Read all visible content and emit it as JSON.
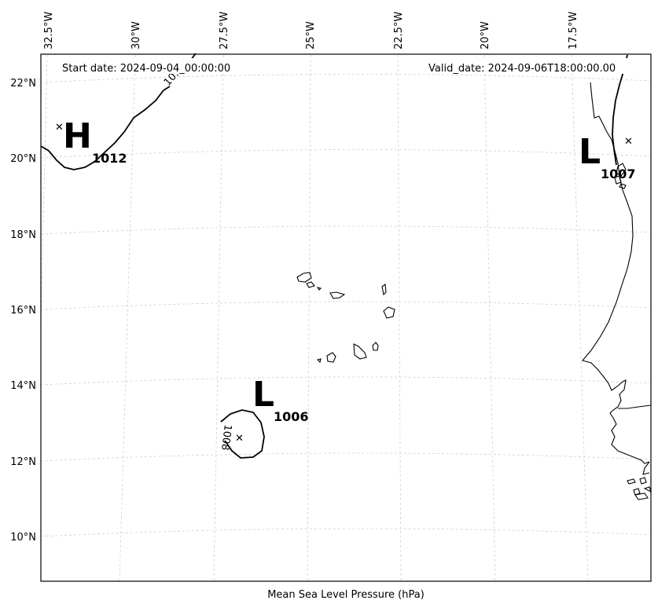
{
  "header": {
    "start_date": "Start date: 2024-09-04_00:00:00",
    "valid_date": "Valid_date: 2024-09-06T18:00:00.00"
  },
  "axis": {
    "xlabel": "Mean Sea Level Pressure (hPa)",
    "lon_ticks": [
      "32.5°W",
      "30°W",
      "27.5°W",
      "25°W",
      "22.5°W",
      "20°W",
      "17.5°W"
    ],
    "lat_ticks": [
      "22°N",
      "20°N",
      "18°N",
      "16°N",
      "14°N",
      "12°N",
      "10°N"
    ]
  },
  "isobar_labels": [
    "10..",
    "1008"
  ],
  "pressure_centers": [
    {
      "type": "H",
      "value": "1012"
    },
    {
      "type": "L",
      "value": "1007"
    },
    {
      "type": "L",
      "value": "1006"
    }
  ],
  "colors": {
    "coastline": "#000000",
    "isobar": "#000000",
    "gridline": "#cfcfcf"
  }
}
